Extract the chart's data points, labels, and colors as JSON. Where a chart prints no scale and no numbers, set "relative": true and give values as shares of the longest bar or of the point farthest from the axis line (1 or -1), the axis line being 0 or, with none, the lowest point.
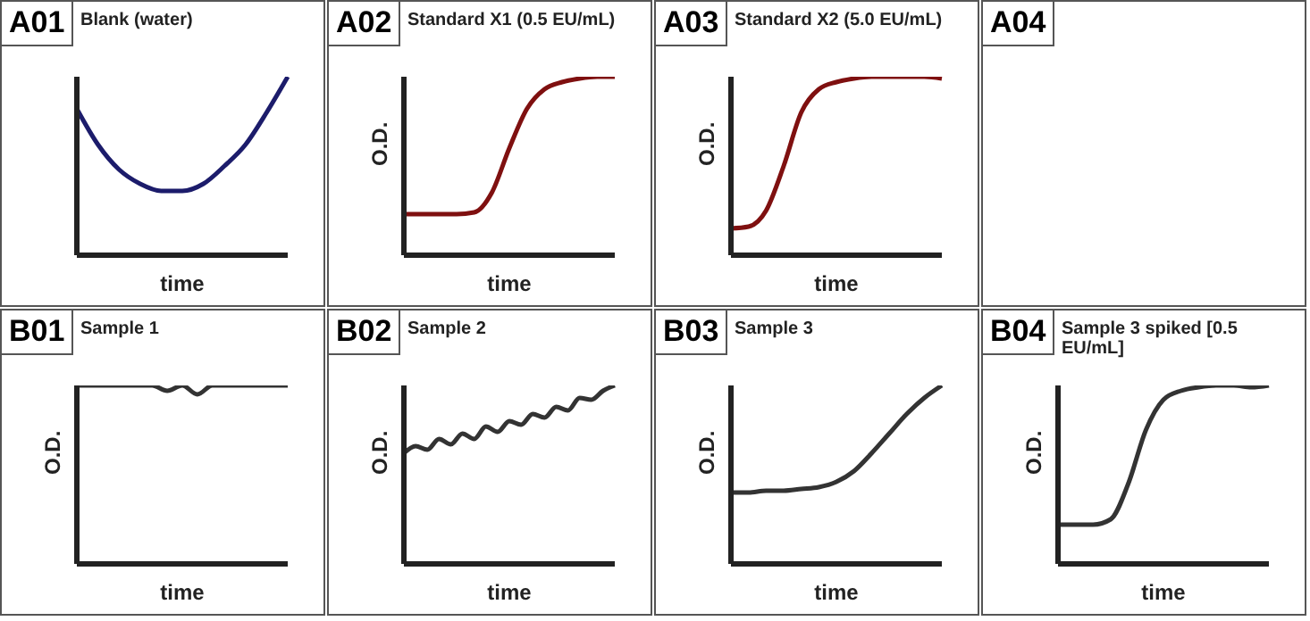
{
  "chart_data": [
    {
      "type": "line",
      "title": "A01",
      "subtitle": "Blank (water)",
      "xlabel": "time",
      "relative": true,
      "color": "#1c1c6b",
      "categories": [
        null,
        null,
        null,
        null,
        null,
        null,
        null,
        null,
        null,
        null,
        null
      ],
      "values": [
        0.82,
        0.62,
        0.48,
        0.4,
        0.36,
        0.36,
        0.4,
        0.5,
        0.62,
        0.8,
        1.0
      ]
    },
    {
      "type": "line",
      "title": "A02",
      "subtitle": "Standard X1 (0.5 EU/mL)",
      "xlabel": "time",
      "ylabel": "O.D.",
      "relative": true,
      "color": "#7f1010",
      "categories": [
        null,
        null,
        null,
        null,
        null,
        null,
        null,
        null,
        null,
        null,
        null,
        null,
        null
      ],
      "values": [
        0.23,
        0.23,
        0.23,
        0.23,
        0.24,
        0.35,
        0.6,
        0.82,
        0.93,
        0.97,
        0.99,
        1.0,
        1.0
      ]
    },
    {
      "type": "line",
      "title": "A03",
      "subtitle": "Standard X2 (5.0 EU/mL)",
      "xlabel": "time",
      "ylabel": "O.D.",
      "relative": true,
      "color": "#7f1010",
      "categories": [
        null,
        null,
        null,
        null,
        null,
        null,
        null,
        null,
        null,
        null,
        null,
        null,
        null
      ],
      "values": [
        0.15,
        0.16,
        0.25,
        0.5,
        0.8,
        0.93,
        0.97,
        0.99,
        1.0,
        1.0,
        1.0,
        1.0,
        0.99
      ]
    },
    {
      "type": "other",
      "title": "A04"
    },
    {
      "type": "line",
      "title": "B01",
      "subtitle": "Sample 1",
      "xlabel": "time",
      "ylabel": "O.D.",
      "relative": true,
      "color": "#333333",
      "categories": [
        null,
        null,
        null,
        null,
        null,
        null,
        null,
        null,
        null,
        null,
        null,
        null,
        null,
        null,
        null
      ],
      "values": [
        1,
        1,
        1,
        1,
        1,
        1,
        0.97,
        1,
        0.95,
        1,
        1,
        1,
        1,
        1,
        1
      ]
    },
    {
      "type": "line",
      "title": "B02",
      "subtitle": "Sample 2",
      "xlabel": "time",
      "ylabel": "O.D.",
      "relative": true,
      "color": "#333333",
      "categories": [
        null,
        null,
        null,
        null,
        null,
        null,
        null,
        null,
        null,
        null,
        null,
        null,
        null,
        null,
        null,
        null,
        null,
        null,
        null
      ],
      "values": [
        0.62,
        0.66,
        0.64,
        0.7,
        0.67,
        0.73,
        0.7,
        0.77,
        0.74,
        0.8,
        0.78,
        0.84,
        0.82,
        0.88,
        0.86,
        0.93,
        0.92,
        0.97,
        1.0
      ]
    },
    {
      "type": "line",
      "title": "B03",
      "subtitle": "Sample 3",
      "xlabel": "time",
      "ylabel": "O.D.",
      "relative": true,
      "color": "#333333",
      "categories": [
        null,
        null,
        null,
        null,
        null,
        null,
        null,
        null,
        null,
        null,
        null,
        null,
        null
      ],
      "values": [
        0.4,
        0.4,
        0.41,
        0.41,
        0.42,
        0.43,
        0.46,
        0.52,
        0.62,
        0.73,
        0.84,
        0.93,
        1.0
      ]
    },
    {
      "type": "line",
      "title": "B04",
      "subtitle": "Sample 3 spiked [0.5 EU/mL]",
      "xlabel": "time",
      "ylabel": "O.D.",
      "relative": true,
      "color": "#333333",
      "categories": [
        null,
        null,
        null,
        null,
        null,
        null,
        null,
        null,
        null,
        null,
        null,
        null,
        null
      ],
      "values": [
        0.22,
        0.22,
        0.22,
        0.25,
        0.45,
        0.75,
        0.92,
        0.97,
        0.99,
        1.0,
        1.0,
        0.99,
        1.0
      ]
    }
  ]
}
